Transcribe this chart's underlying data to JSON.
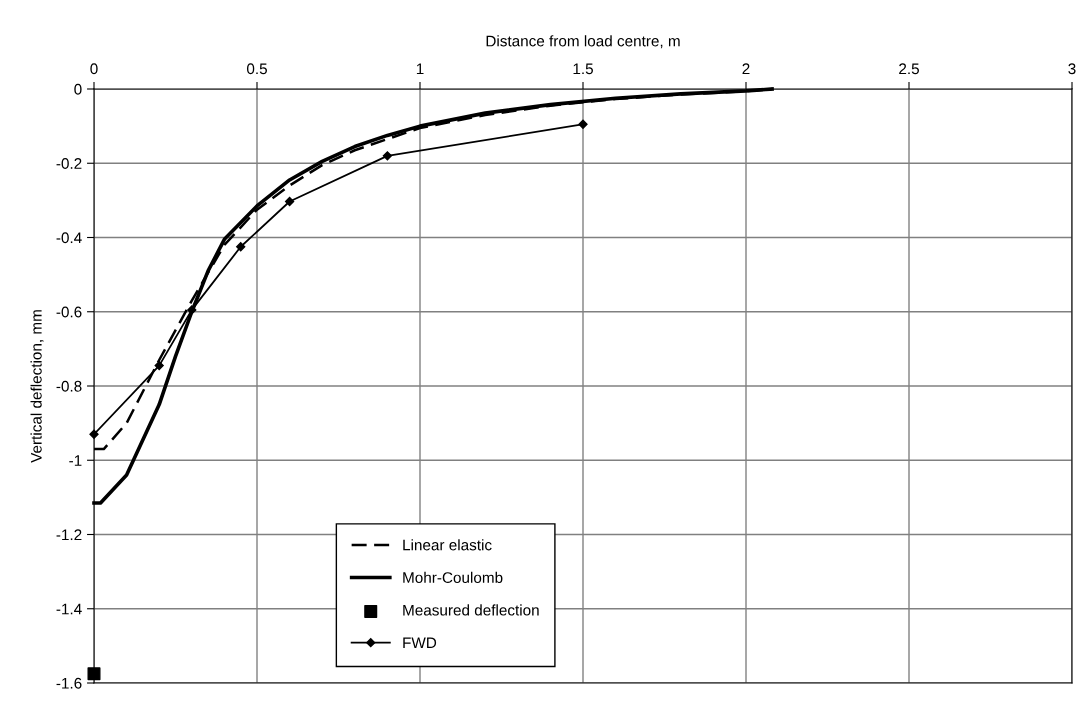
{
  "chart_data": {
    "type": "line",
    "xlabel": "Distance from load centre, m",
    "ylabel": "Vertical deflection, mm",
    "xlim": [
      0,
      3
    ],
    "xticks": [
      0,
      0.5,
      1,
      1.5,
      2,
      2.5,
      3
    ],
    "ylim": [
      -1.6,
      0
    ],
    "yticks": [
      -1.6,
      -1.4,
      -1.2,
      -1,
      -0.8,
      -0.6,
      -0.4,
      -0.2,
      0
    ],
    "grid": true,
    "legend": "bottom left",
    "series": [
      {
        "name": "Linear elastic",
        "color": "#000000",
        "line_style": "dashed",
        "marker": "none",
        "x": [
          0,
          0.03,
          0.1,
          0.2,
          0.3,
          0.4,
          0.5,
          0.6,
          0.7,
          0.8,
          0.9,
          1.0,
          1.2,
          1.4,
          1.6,
          1.8,
          2.0,
          2.08
        ],
        "values": [
          -0.97,
          -0.97,
          -0.9,
          -0.73,
          -0.57,
          -0.42,
          -0.325,
          -0.26,
          -0.205,
          -0.165,
          -0.135,
          -0.105,
          -0.07,
          -0.045,
          -0.027,
          -0.015,
          -0.006,
          0
        ]
      },
      {
        "name": "Mohr-Coulomb",
        "color": "#000000",
        "line_style": "solid",
        "marker": "none",
        "x": [
          0,
          0.02,
          0.1,
          0.2,
          0.25,
          0.3,
          0.35,
          0.4,
          0.5,
          0.6,
          0.7,
          0.8,
          0.9,
          1.0,
          1.2,
          1.4,
          1.6,
          1.8,
          2.0,
          2.08
        ],
        "values": [
          -1.115,
          -1.115,
          -1.04,
          -0.85,
          -0.72,
          -0.6,
          -0.49,
          -0.405,
          -0.315,
          -0.245,
          -0.195,
          -0.155,
          -0.125,
          -0.1,
          -0.065,
          -0.042,
          -0.025,
          -0.013,
          -0.005,
          0
        ]
      },
      {
        "name": "Measured deflection",
        "type": "scatter",
        "color": "#000000",
        "marker": "square",
        "x": [
          0
        ],
        "values": [
          -1.575
        ]
      },
      {
        "name": "FWD",
        "color": "#000000",
        "line_style": "solid",
        "marker": "diamond",
        "x": [
          0,
          0.2,
          0.3,
          0.45,
          0.6,
          0.9,
          1.5
        ],
        "values": [
          -0.93,
          -0.745,
          -0.595,
          -0.425,
          -0.303,
          -0.18,
          -0.095
        ]
      }
    ]
  }
}
